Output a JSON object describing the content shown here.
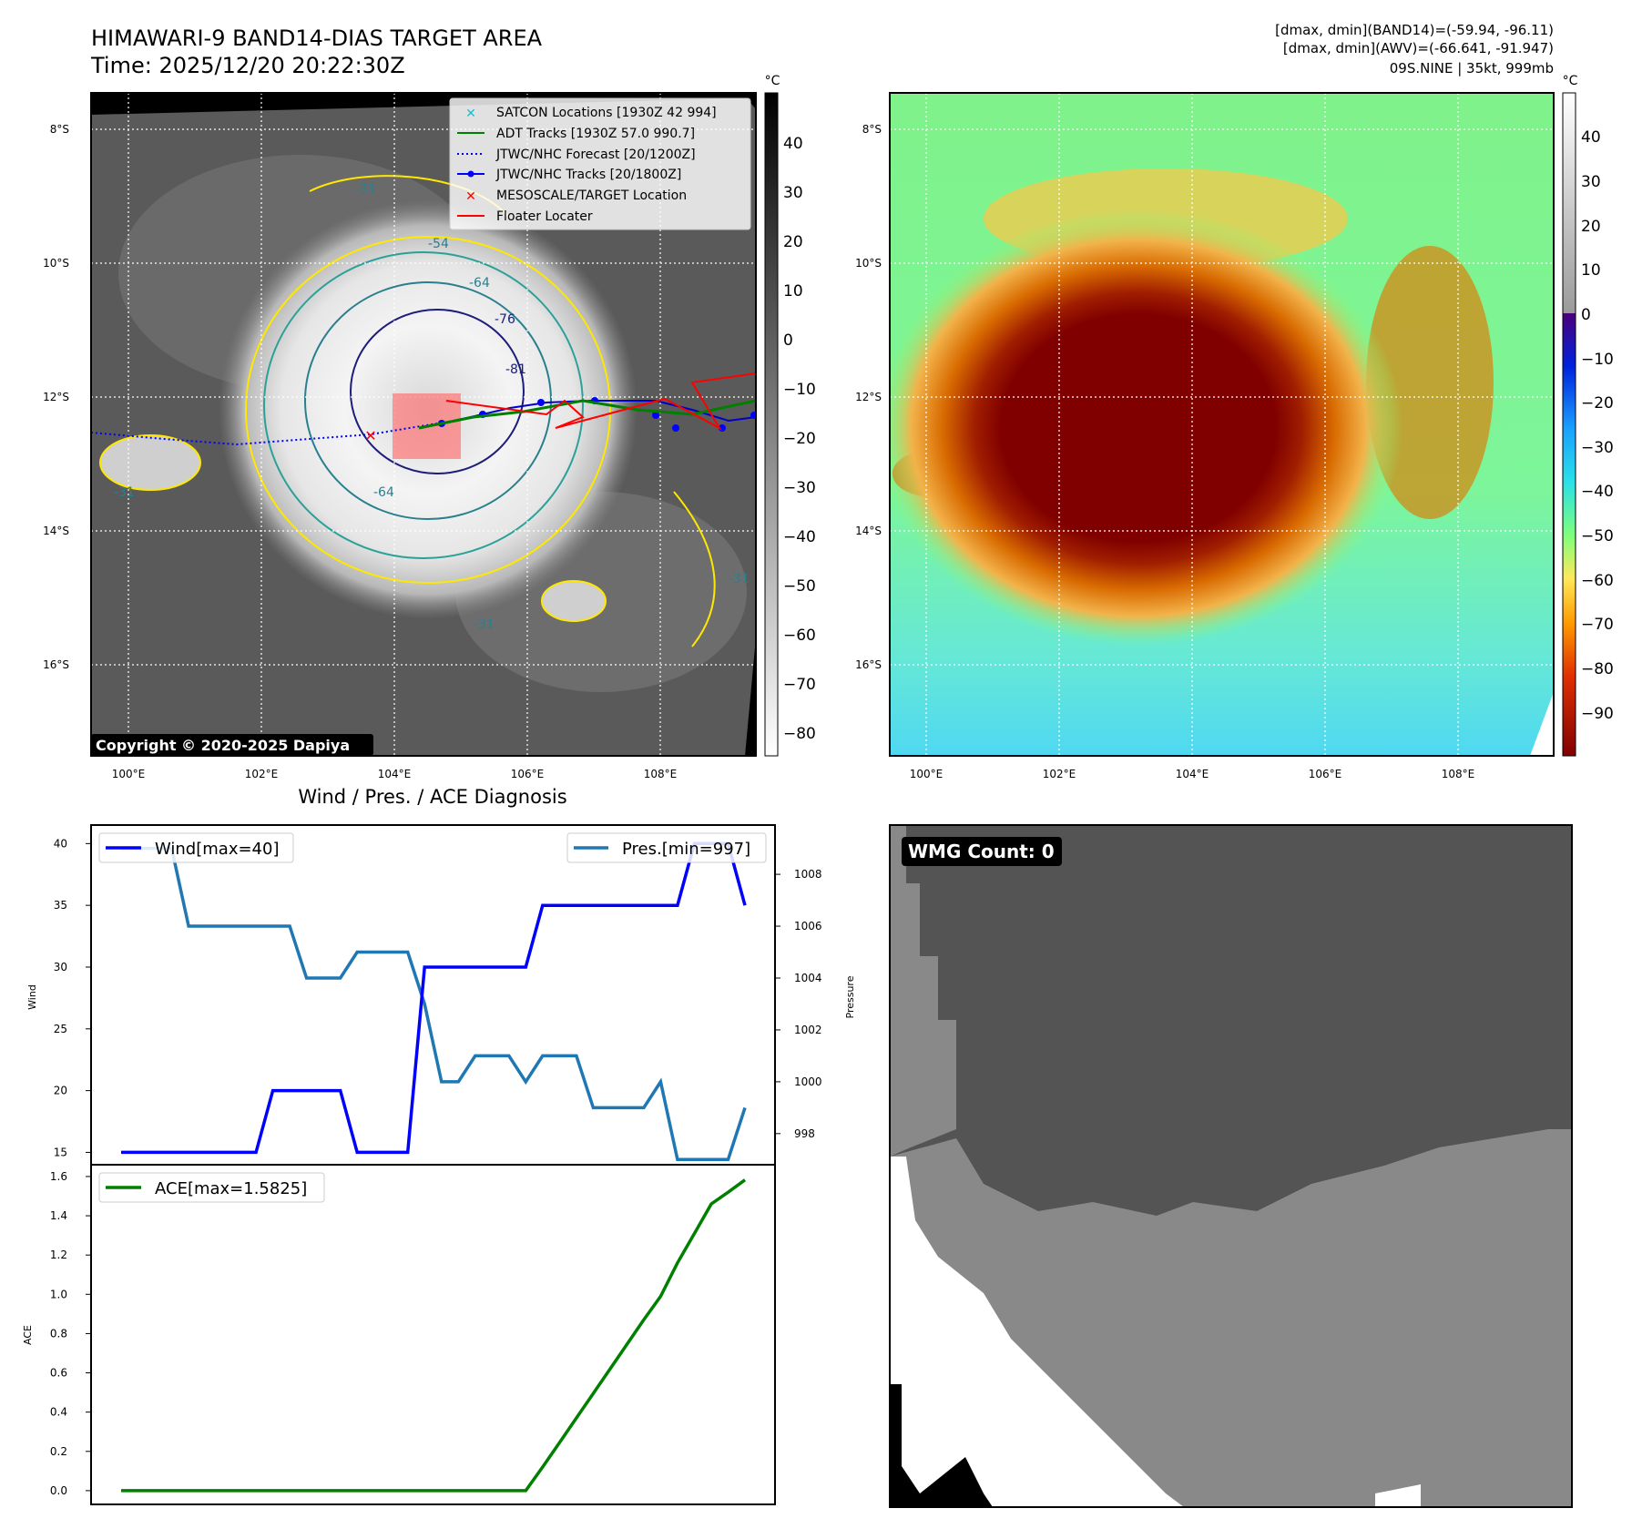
{
  "header": {
    "title_line1": "HIMAWARI-9 BAND14-DIAS TARGET AREA",
    "title_line2": "Time: 2025/12/20 20:22:30Z",
    "info_line1": "[dmax, dmin](BAND14)=(-59.94, -96.11)",
    "info_line2": "[dmax, dmin](AWV)=(-66.641, -91.947)",
    "info_line3": "09S.NINE | 35kt, 999mb"
  },
  "map_left": {
    "copyright": "Copyright © 2020-2025 Dapiya",
    "colorbar_unit": "°C",
    "colorbar_ticks": [
      "40",
      "30",
      "20",
      "10",
      "0",
      "−10",
      "−20",
      "−30",
      "−40",
      "−50",
      "−60",
      "−70",
      "−80"
    ],
    "lat_labels": [
      "8°S",
      "10°S",
      "12°S",
      "14°S",
      "16°S"
    ],
    "lon_labels": [
      "100°E",
      "102°E",
      "104°E",
      "106°E",
      "108°E"
    ],
    "contour_labels": [
      "-31",
      "-54",
      "-64",
      "-76",
      "-81",
      "-31",
      "-64",
      "-31",
      "-31"
    ],
    "legend": [
      {
        "label": "SATCON Locations [1930Z 42 994]",
        "color": "#17becf",
        "marker": "x"
      },
      {
        "label": "ADT Tracks [1930Z 57.0 990.7]",
        "color": "#008000",
        "marker": "line"
      },
      {
        "label": "JTWC/NHC Forecast [20/1200Z]",
        "color": "#0000ff",
        "marker": "dotted"
      },
      {
        "label": "JTWC/NHC Tracks [20/1800Z]",
        "color": "#0000ff",
        "marker": "line-dot"
      },
      {
        "label": "MESOSCALE/TARGET Location",
        "color": "#ff0000",
        "marker": "x"
      },
      {
        "label": "Floater Locater",
        "color": "#ff0000",
        "marker": "line"
      }
    ]
  },
  "map_right": {
    "colorbar_unit": "°C",
    "colorbar_ticks": [
      "40",
      "30",
      "20",
      "10",
      "0",
      "−10",
      "−20",
      "−30",
      "−40",
      "−50",
      "−60",
      "−70",
      "−80",
      "−90"
    ],
    "lat_labels": [
      "8°S",
      "10°S",
      "12°S",
      "14°S",
      "16°S"
    ],
    "lon_labels": [
      "100°E",
      "102°E",
      "104°E",
      "106°E",
      "108°E"
    ]
  },
  "wmg": {
    "label": "WMG Count: 0"
  },
  "chart_data": [
    {
      "type": "line",
      "title": "Wind / Pres. / ACE Diagnosis",
      "ylabel": "Wind",
      "ylabel_right": "Pressure",
      "ylim": [
        14,
        41.5
      ],
      "ylim_right": [
        996.8,
        1009.9
      ],
      "yticks": [
        15,
        20,
        25,
        30,
        35,
        40
      ],
      "yticks_right": [
        998,
        1000,
        1002,
        1004,
        1006,
        1008
      ],
      "x": [
        0,
        1,
        2,
        3,
        4,
        5,
        6,
        7,
        8,
        9,
        10,
        11,
        12,
        13,
        14,
        15,
        16,
        17,
        18,
        19,
        20,
        21,
        22,
        23,
        24,
        25,
        26,
        27,
        28,
        29,
        30,
        31,
        32,
        33,
        34,
        35,
        36,
        37
      ],
      "series": [
        {
          "name": "Wind[max=40]",
          "color": "#0000ff",
          "values": [
            15,
            15,
            15,
            15,
            15,
            15,
            15,
            15,
            15,
            20,
            20,
            20,
            20,
            20,
            15,
            15,
            15,
            15,
            30,
            30,
            30,
            30,
            30,
            30,
            30,
            35,
            35,
            35,
            35,
            35,
            35,
            35,
            35,
            35,
            40,
            40,
            40,
            35
          ]
        },
        {
          "name": "Pres.[min=997]",
          "color": "#1f77b4",
          "values": [
            1009,
            1009,
            1009,
            1009,
            1006,
            1006,
            1006,
            1006,
            1006,
            1006,
            1006,
            1004,
            1004,
            1004,
            1005,
            1005,
            1005,
            1005,
            1003,
            1000,
            1000,
            1001,
            1001,
            1001,
            1000,
            1001,
            1001,
            1001,
            999,
            999,
            999,
            999,
            1000,
            997,
            997,
            997,
            997,
            999
          ]
        }
      ]
    },
    {
      "type": "line",
      "ylabel": "ACE",
      "ylim": [
        -0.07,
        1.66
      ],
      "yticks": [
        0.0,
        0.2,
        0.4,
        0.6,
        0.8,
        1.0,
        1.2,
        1.4,
        1.6
      ],
      "x": [
        0,
        1,
        2,
        3,
        4,
        5,
        6,
        7,
        8,
        9,
        10,
        11,
        12,
        13,
        14,
        15,
        16,
        17,
        18,
        19,
        20,
        21,
        22,
        23,
        24,
        25,
        26,
        27,
        28,
        29,
        30,
        31,
        32,
        33,
        34,
        35,
        36,
        37
      ],
      "series": [
        {
          "name": "ACE[max=1.5825]",
          "color": "#008000",
          "values": [
            0,
            0,
            0,
            0,
            0,
            0,
            0,
            0,
            0,
            0,
            0,
            0,
            0,
            0,
            0,
            0,
            0,
            0,
            0,
            0,
            0,
            0,
            0,
            0,
            0,
            0.12,
            0.245,
            0.37,
            0.495,
            0.62,
            0.745,
            0.87,
            0.99,
            1.16,
            1.31,
            1.46,
            1.52,
            1.5825
          ]
        }
      ]
    }
  ]
}
